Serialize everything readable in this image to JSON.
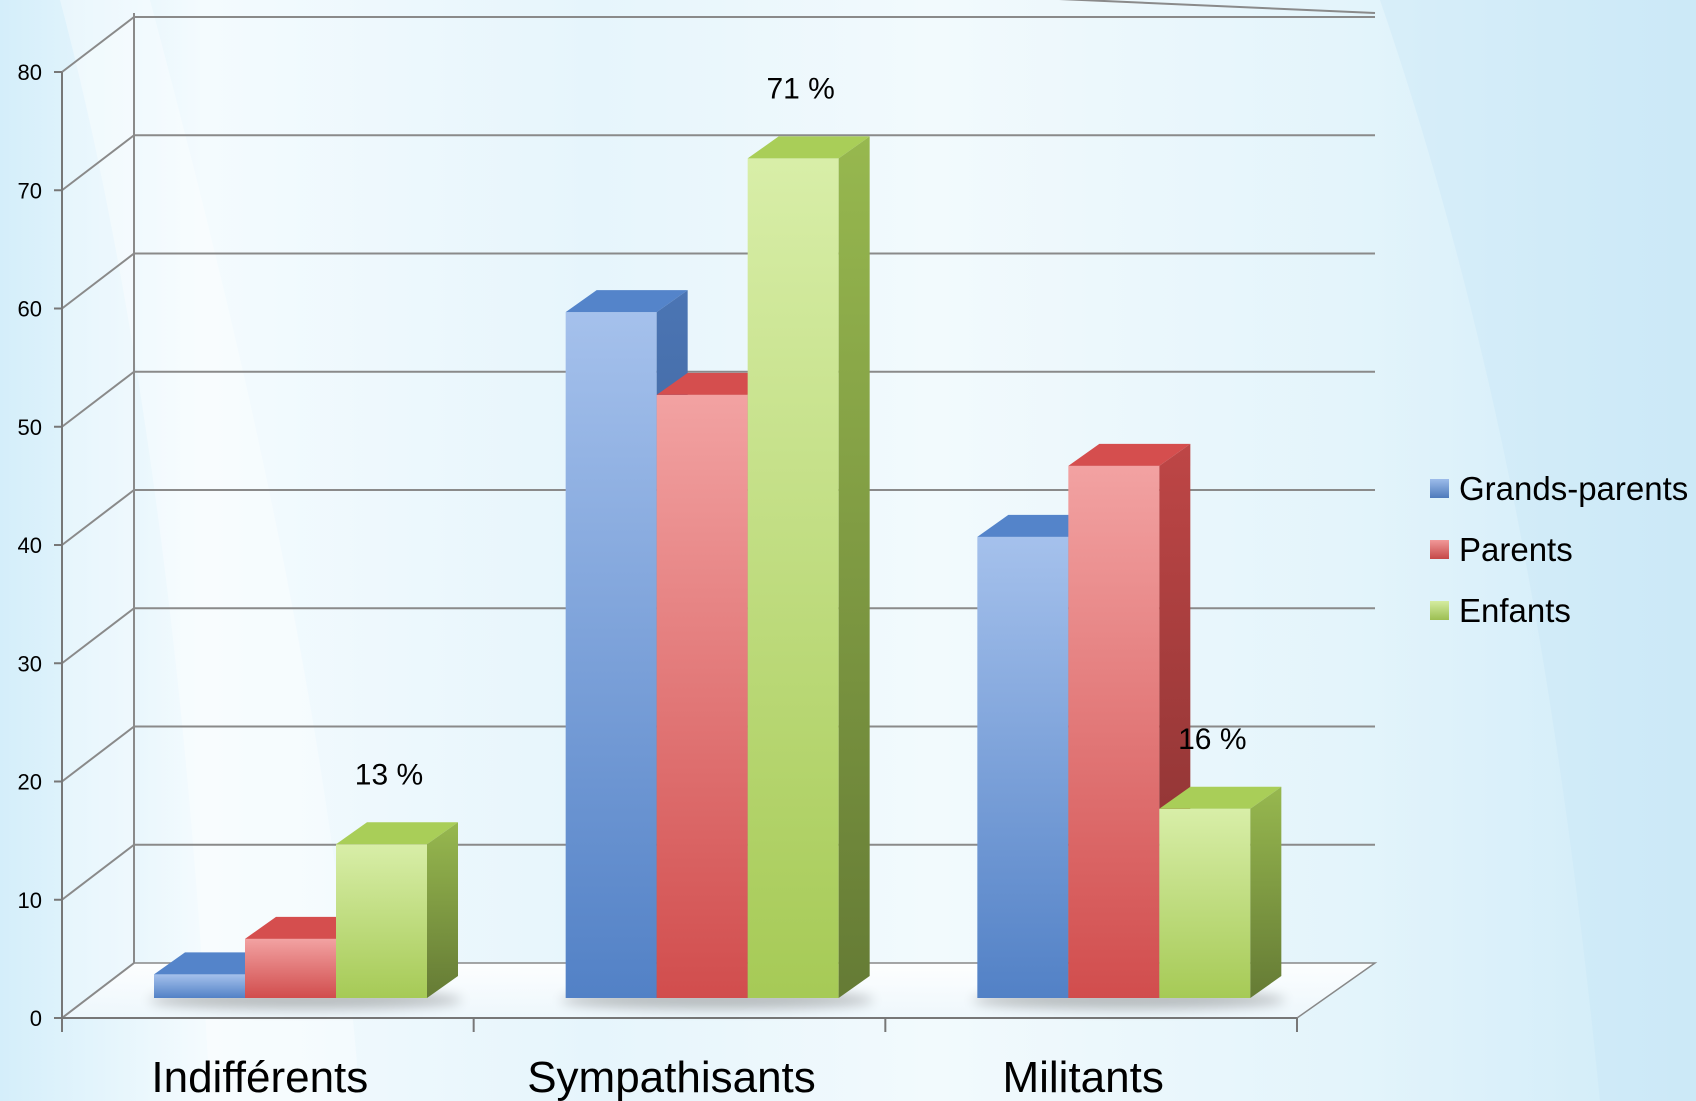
{
  "chart_data": {
    "type": "bar",
    "subtype": "3d-clustered-column",
    "categories": [
      "Indifférents",
      "Sympathisants",
      "Militants"
    ],
    "series": [
      {
        "name": "Grands-parents",
        "color": "#5b8fdc",
        "values": [
          2,
          58,
          39
        ]
      },
      {
        "name": "Parents",
        "color": "#e85555",
        "values": [
          5,
          51,
          45
        ]
      },
      {
        "name": "Enfants",
        "color": "#b8e060",
        "values": [
          13,
          71,
          16
        ]
      }
    ],
    "data_labels": [
      {
        "category": "Indifférents",
        "series": "Enfants",
        "text": "13 %"
      },
      {
        "category": "Sympathisants",
        "series": "Enfants",
        "text": "71 %"
      },
      {
        "category": "Militants",
        "series": "Enfants",
        "text": "16 %"
      }
    ],
    "y_ticks": [
      "0",
      "10",
      "20",
      "30",
      "40",
      "50",
      "60",
      "70",
      "80"
    ],
    "ylim": [
      0,
      80
    ],
    "grid": true,
    "legend_position": "right"
  }
}
